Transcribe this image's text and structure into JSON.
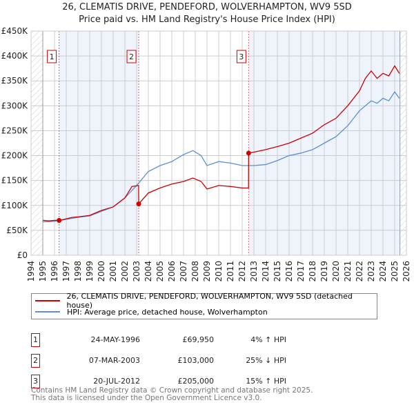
{
  "title": "26, CLEMATIS DRIVE, PENDEFORD, WOLVERHAMPTON, WV9 5SD",
  "subtitle": "Price paid vs. HM Land Registry's House Price Index (HPI)",
  "colors": {
    "property": "#cc0000",
    "hpi": "#5b8fd6",
    "shade": "#eef3fc"
  },
  "chart_data": {
    "type": "line",
    "title": "26, CLEMATIS DRIVE, PENDEFORD, WOLVERHAMPTON, WV9 5SD",
    "xlim": [
      1994,
      2026
    ],
    "ylim": [
      0,
      450000
    ],
    "y_ticks": [
      "£0",
      "£50K",
      "£100K",
      "£150K",
      "£200K",
      "£250K",
      "£300K",
      "£350K",
      "£400K",
      "£450K"
    ],
    "x_ticks": [
      "1994",
      "1995",
      "1996",
      "1997",
      "1998",
      "1999",
      "2000",
      "2001",
      "2002",
      "2003",
      "2004",
      "2005",
      "2006",
      "2007",
      "2008",
      "2009",
      "2010",
      "2011",
      "2012",
      "2013",
      "2014",
      "2015",
      "2016",
      "2017",
      "2018",
      "2019",
      "2020",
      "2021",
      "2022",
      "2023",
      "2024",
      "2025",
      "2026"
    ],
    "grid": true,
    "series": [
      {
        "name": "26, CLEMATIS DRIVE, PENDEFORD, WOLVERHAMPTON, WV9 5SD (detached house)",
        "x": [
          1995,
          1995.5,
          1996,
          1996.39,
          1996.8,
          1997.5,
          1998,
          1999,
          2000,
          2001,
          2002,
          2002.6,
          2003.17,
          2003.18,
          2004,
          2005,
          2006,
          2007,
          2007.8,
          2008.5,
          2009,
          2010,
          2011,
          2012,
          2012.54,
          2012.55,
          2013,
          2014,
          2015,
          2016,
          2017,
          2018,
          2019,
          2020,
          2021,
          2022,
          2022.5,
          2023,
          2023.5,
          2024,
          2024.5,
          2025,
          2025.4
        ],
        "y": [
          70000,
          69000,
          70000,
          69950,
          72000,
          76000,
          77000,
          80000,
          90000,
          97000,
          115000,
          138000,
          140000,
          103000,
          125000,
          135000,
          143000,
          148000,
          155000,
          148000,
          133000,
          140000,
          138000,
          135000,
          135000,
          205000,
          207000,
          212000,
          218000,
          225000,
          235000,
          245000,
          262000,
          275000,
          300000,
          330000,
          355000,
          370000,
          355000,
          365000,
          360000,
          380000,
          365000
        ]
      },
      {
        "name": "HPI: Average price, detached house, Wolverhampton",
        "x": [
          1995,
          1996,
          1997,
          1998,
          1999,
          2000,
          2001,
          2002,
          2003,
          2004,
          2005,
          2006,
          2007,
          2007.8,
          2008.5,
          2009,
          2010,
          2011,
          2012,
          2013,
          2014,
          2015,
          2016,
          2017,
          2018,
          2019,
          2020,
          2021,
          2022,
          2023,
          2023.5,
          2024,
          2024.5,
          2025,
          2025.4
        ],
        "y": [
          67000,
          68000,
          72000,
          76000,
          79000,
          88000,
          97000,
          115000,
          140000,
          168000,
          180000,
          188000,
          202000,
          210000,
          200000,
          180000,
          188000,
          185000,
          180000,
          180000,
          182000,
          190000,
          200000,
          205000,
          212000,
          225000,
          238000,
          260000,
          290000,
          310000,
          305000,
          315000,
          310000,
          328000,
          315000
        ]
      }
    ],
    "sales": [
      {
        "label": "1",
        "x": 1996.39,
        "y": 69950
      },
      {
        "label": "2",
        "x": 2003.18,
        "y": 103000
      },
      {
        "label": "3",
        "x": 2012.55,
        "y": 205000
      }
    ],
    "data_end": 2025.45
  },
  "legend": {
    "property": "26, CLEMATIS DRIVE, PENDEFORD, WOLVERHAMPTON, WV9 5SD (detached house)",
    "hpi": "HPI: Average price, detached house, Wolverhampton"
  },
  "transactions": [
    {
      "num": "1",
      "date": "24-MAY-1996",
      "price": "£69,950",
      "hpi": "4% ↑ HPI"
    },
    {
      "num": "2",
      "date": "07-MAR-2003",
      "price": "£103,000",
      "hpi": "25% ↓ HPI"
    },
    {
      "num": "3",
      "date": "20-JUL-2012",
      "price": "£205,000",
      "hpi": "15% ↑ HPI"
    }
  ],
  "footer": {
    "line1": "Contains HM Land Registry data © Crown copyright and database right 2025.",
    "line2": "This data is licensed under the Open Government Licence v3.0."
  }
}
